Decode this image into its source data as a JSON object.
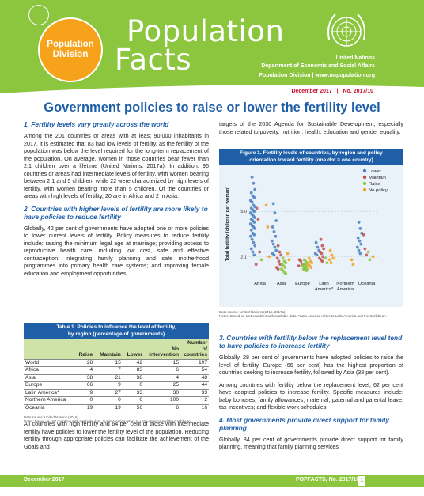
{
  "header": {
    "badge_line1": "Population",
    "badge_line2": "Division",
    "title_line1": "Population",
    "title_line2": "Facts",
    "org": "United Nations",
    "department": "Department of Economic and Social Affairs",
    "division": "Population Division  |  www.unpopulation.org",
    "date": "December 2017",
    "issue": "No. 2017/10"
  },
  "title": "Government policies to raise or lower the fertility level",
  "left": {
    "h1": "1. Fertility levels vary greatly across the world",
    "p1": "Among the 201 countries or areas with at least 90,000 inhabitants in 2017, it is estimated that 83 had low levels of fertility, as the fertility of the population was below the level required for the long-term replacement of the population. On average, women in those countries bear fewer than 2.1 children over a lifetime (United Nations, 2017a). In addition, 96 countries or areas had intermediate levels of fertility, with women bearing between 2.1 and 5 children, while 22 were characterized by high levels of fertility, with women bearing more than 5 children. Of the countries or areas with high levels of fertility, 20 are in Africa and 2 in Asia.",
    "h2": "2. Countries with higher levels of fertility are more likely to have policies to reduce fertility",
    "p2": "Globally, 42 per cent of governments have adopted one or more policies to lower current levels of fertility. Policy measures to reduce fertility include: raising the minimum legal age at marriage; providing access to reproductive health care, including low cost, safe and effective contraception; integrating family planning and safe motherhood programmes into primary health care systems; and improving female education and employment opportunities.",
    "p3": "All countries with high fertility and 64 per cent of those with intermediate fertility have policies to lower the fertility level of the population. Reducing fertility through appropriate policies can facilitate the achievement of the Goals and"
  },
  "table": {
    "title_line1": "Table 1. Policies to influence the level of fertility,",
    "title_line2": "by region (percentage of governments)",
    "headers": [
      "",
      "Raise",
      "Maintain",
      "Lower",
      "No intervention",
      "Number of countries"
    ],
    "rows": [
      [
        "World",
        "28",
        "15",
        "42",
        "15",
        "197"
      ],
      [
        "Africa",
        "4",
        "7",
        "83",
        "6",
        "54"
      ],
      [
        "Asia",
        "38",
        "21",
        "38",
        "4",
        "48"
      ],
      [
        "Europe",
        "66",
        "9",
        "0",
        "25",
        "44"
      ],
      [
        "Latin America*",
        "9",
        "27",
        "33",
        "30",
        "33"
      ],
      [
        "Northern America",
        "0",
        "0",
        "0",
        "100",
        "2"
      ],
      [
        "Oceania",
        "19",
        "19",
        "56",
        "6",
        "16"
      ]
    ],
    "source": "Data source: United Nations (2016).",
    "notes": "Notes: Based on 197 countries with available data. *Latin America refers to Latin America and the Caribbean."
  },
  "right": {
    "p0": "targets of the 2030 Agenda for Sustainable Development, especially those related to poverty, nutrition, health, education and gender equality.",
    "h3": "3. Countries with fertility below the replacement level tend to have policies to increase fertility",
    "p4": "Globally, 28 per cent of governments have adopted policies to raise the level of fertility. Europe (66 per cent) has the highest proportion of countries seeking to increase fertility, followed by Asia (38 per cent).",
    "p5": "Among countries with fertility below the replacement level, 62 per cent have adopted policies to increase fertility. Specific measures include: baby bonuses; family allowances; maternal, paternal and parental leave; tax incentives; and flexible work schedules.",
    "h4": "4. Most governments provide direct support for family planning",
    "p6": "Globally, 84 per cent of governments provide direct support for family planning, meaning that family planning services"
  },
  "figure": {
    "title_line1": "Figure 1. Fertility levels of countries, by region and policy",
    "title_line2": "orientation toward fertility (one dot = one country)",
    "source": "Data source: United Nations (2016, 2017a).",
    "notes": "Notes: Based on 184 countries with available data. *Latin America refers to Latin America and the Caribbean."
  },
  "chart_data": {
    "type": "scatter",
    "ylabel": "Total fertility (children per woman)",
    "ylim": [
      0.8,
      7.6
    ],
    "yticks": [
      "5.0",
      "2.1"
    ],
    "ytick_values": [
      5.0,
      2.1
    ],
    "categories": [
      "Africa",
      "Asia",
      "Europe",
      "Latin America*",
      "Northern America",
      "Oceania"
    ],
    "category_labels": [
      [
        "Africa"
      ],
      [
        "Asia"
      ],
      [
        "Europe"
      ],
      [
        "Latin",
        "America*"
      ],
      [
        "Northern",
        "America"
      ],
      [
        "Oceania"
      ]
    ],
    "legend_position": "top-right",
    "colors": {
      "Lower": "#4a7fc1",
      "Maintain": "#c0504d",
      "Raise": "#8cc63f",
      "No policy": "#f6a21b"
    },
    "series": [
      {
        "name": "Lower",
        "points": [
          [
            "Africa",
            7.2
          ],
          [
            "Africa",
            6.8
          ],
          [
            "Africa",
            6.4
          ],
          [
            "Africa",
            6.2
          ],
          [
            "Africa",
            6.0
          ],
          [
            "Africa",
            5.9
          ],
          [
            "Africa",
            5.7
          ],
          [
            "Africa",
            5.6
          ],
          [
            "Africa",
            5.4
          ],
          [
            "Africa",
            5.3
          ],
          [
            "Africa",
            5.2
          ],
          [
            "Africa",
            5.1
          ],
          [
            "Africa",
            5.0
          ],
          [
            "Africa",
            4.9
          ],
          [
            "Africa",
            4.8
          ],
          [
            "Africa",
            4.7
          ],
          [
            "Africa",
            4.6
          ],
          [
            "Africa",
            4.5
          ],
          [
            "Africa",
            4.4
          ],
          [
            "Africa",
            4.3
          ],
          [
            "Africa",
            4.2
          ],
          [
            "Africa",
            4.1
          ],
          [
            "Africa",
            4.0
          ],
          [
            "Africa",
            3.9
          ],
          [
            "Africa",
            3.8
          ],
          [
            "Africa",
            3.6
          ],
          [
            "Africa",
            3.5
          ],
          [
            "Africa",
            3.4
          ],
          [
            "Africa",
            3.2
          ],
          [
            "Africa",
            3.0
          ],
          [
            "Africa",
            2.8
          ],
          [
            "Africa",
            2.6
          ],
          [
            "Africa",
            2.4
          ],
          [
            "Africa",
            2.2
          ],
          [
            "Asia",
            5.5
          ],
          [
            "Asia",
            4.9
          ],
          [
            "Asia",
            4.4
          ],
          [
            "Asia",
            4.0
          ],
          [
            "Asia",
            3.7
          ],
          [
            "Asia",
            3.4
          ],
          [
            "Asia",
            3.1
          ],
          [
            "Asia",
            2.9
          ],
          [
            "Asia",
            2.7
          ],
          [
            "Asia",
            2.5
          ],
          [
            "Asia",
            2.3
          ],
          [
            "Asia",
            2.2
          ],
          [
            "Latin America*",
            3.0
          ],
          [
            "Latin America*",
            2.7
          ],
          [
            "Latin America*",
            2.5
          ],
          [
            "Latin America*",
            2.3
          ],
          [
            "Latin America*",
            2.2
          ],
          [
            "Oceania",
            4.3
          ],
          [
            "Oceania",
            3.9
          ],
          [
            "Oceania",
            3.6
          ],
          [
            "Oceania",
            3.3
          ],
          [
            "Oceania",
            3.1
          ],
          [
            "Oceania",
            2.9
          ],
          [
            "Oceania",
            2.7
          ],
          [
            "Oceania",
            2.5
          ],
          [
            "Oceania",
            2.3
          ]
        ]
      },
      {
        "name": "Maintain",
        "points": [
          [
            "Africa",
            5.2
          ],
          [
            "Africa",
            4.5
          ],
          [
            "Africa",
            2.4
          ],
          [
            "Africa",
            1.6
          ],
          [
            "Asia",
            2.8
          ],
          [
            "Asia",
            2.4
          ],
          [
            "Asia",
            2.2
          ],
          [
            "Asia",
            2.0
          ],
          [
            "Asia",
            1.8
          ],
          [
            "Asia",
            1.6
          ],
          [
            "Asia",
            1.4
          ],
          [
            "Asia",
            1.3
          ],
          [
            "Europe",
            1.9
          ],
          [
            "Europe",
            1.8
          ],
          [
            "Europe",
            1.6
          ],
          [
            "Europe",
            1.5
          ],
          [
            "Latin America*",
            3.2
          ],
          [
            "Latin America*",
            2.8
          ],
          [
            "Latin America*",
            2.6
          ],
          [
            "Latin America*",
            2.4
          ],
          [
            "Latin America*",
            2.3
          ],
          [
            "Latin America*",
            2.1
          ],
          [
            "Latin America*",
            2.0
          ],
          [
            "Latin America*",
            1.9
          ],
          [
            "Latin America*",
            1.8
          ],
          [
            "Oceania",
            3.5
          ],
          [
            "Oceania",
            2.6
          ],
          [
            "Oceania",
            2.2
          ]
        ]
      },
      {
        "name": "Raise",
        "points": [
          [
            "Africa",
            1.9
          ],
          [
            "Asia",
            2.0
          ],
          [
            "Asia",
            1.8
          ],
          [
            "Asia",
            1.7
          ],
          [
            "Asia",
            1.6
          ],
          [
            "Asia",
            1.5
          ],
          [
            "Asia",
            1.4
          ],
          [
            "Asia",
            1.3
          ],
          [
            "Asia",
            1.2
          ],
          [
            "Asia",
            1.1
          ],
          [
            "Asia",
            1.0
          ],
          [
            "Europe",
            1.9
          ],
          [
            "Europe",
            1.8
          ],
          [
            "Europe",
            1.7
          ],
          [
            "Europe",
            1.6
          ],
          [
            "Europe",
            1.6
          ],
          [
            "Europe",
            1.5
          ],
          [
            "Europe",
            1.5
          ],
          [
            "Europe",
            1.4
          ],
          [
            "Europe",
            1.4
          ],
          [
            "Europe",
            1.3
          ],
          [
            "Europe",
            1.3
          ],
          [
            "Europe",
            1.3
          ],
          [
            "Europe",
            1.2
          ],
          [
            "Latin America*",
            2.0
          ],
          [
            "Latin America*",
            1.7
          ],
          [
            "Oceania",
            2.4
          ],
          [
            "Oceania",
            1.9
          ]
        ]
      },
      {
        "name": "No policy",
        "points": [
          [
            "Africa",
            5.4
          ],
          [
            "Africa",
            4.0
          ],
          [
            "Africa",
            2.1
          ],
          [
            "Asia",
            2.3
          ],
          [
            "Asia",
            1.9
          ],
          [
            "Europe",
            2.0
          ],
          [
            "Europe",
            1.8
          ],
          [
            "Europe",
            1.7
          ],
          [
            "Europe",
            1.6
          ],
          [
            "Europe",
            1.5
          ],
          [
            "Europe",
            1.4
          ],
          [
            "Latin America*",
            2.5
          ],
          [
            "Latin America*",
            2.2
          ],
          [
            "Latin America*",
            2.0
          ],
          [
            "Latin America*",
            1.9
          ],
          [
            "Latin America*",
            1.7
          ],
          [
            "Northern America",
            1.9
          ],
          [
            "Northern America",
            1.6
          ],
          [
            "Oceania",
            2.1
          ]
        ]
      }
    ]
  },
  "footer": {
    "left": "December 2017",
    "right": "POPFACTS, No. 2017/10",
    "page": "1"
  }
}
